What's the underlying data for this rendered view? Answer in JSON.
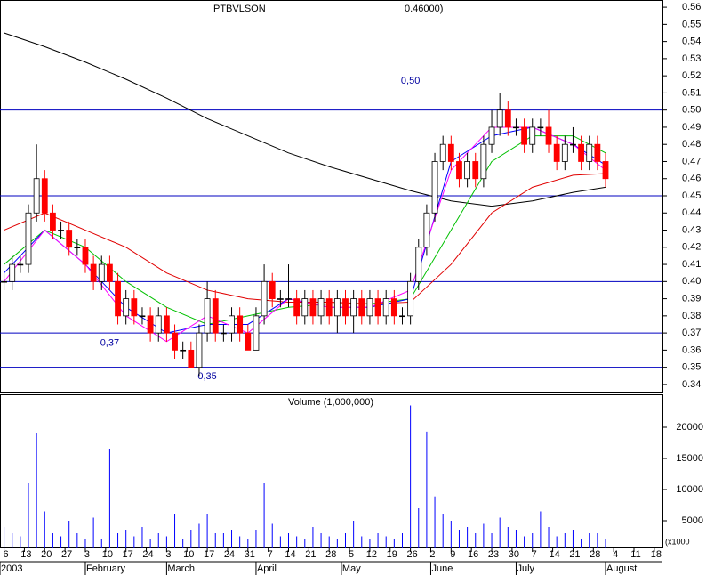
{
  "chart_data": {
    "type": "candlestick",
    "title": "PTBVLSON",
    "last_label": "0.46000)",
    "xlim": [
      -1,
      162
    ],
    "ylim": [
      0.3358,
      0.5642
    ],
    "yticks": [
      0.34,
      0.35,
      0.36,
      0.37,
      0.38,
      0.39,
      {
        "value": 0.4,
        "label": "0.40"
      },
      0.41,
      0.42,
      0.43,
      0.44,
      0.45,
      0.46,
      0.47,
      0.48,
      0.49,
      {
        "value": 0.5,
        "label": "0.50"
      },
      0.51,
      0.52,
      0.53,
      0.54,
      0.55,
      0.56
    ],
    "xticks": [
      {
        "value": 0,
        "label": "6"
      },
      {
        "value": 5,
        "label": "13"
      },
      {
        "value": 10,
        "label": "20"
      },
      {
        "value": 15,
        "label": "27"
      },
      {
        "value": 20,
        "label": "3"
      },
      {
        "value": 25,
        "label": "10"
      },
      {
        "value": 30,
        "label": "17"
      },
      {
        "value": 35,
        "label": "24"
      },
      {
        "value": 40,
        "label": "3"
      },
      {
        "value": 45,
        "label": "10"
      },
      {
        "value": 50,
        "label": "17"
      },
      {
        "value": 55,
        "label": "24"
      },
      {
        "value": 60,
        "label": "31"
      },
      {
        "value": 65,
        "label": "7"
      },
      {
        "value": 70,
        "label": "14"
      },
      {
        "value": 75,
        "label": "21"
      },
      {
        "value": 80,
        "label": "28"
      },
      {
        "value": 85,
        "label": "5"
      },
      {
        "value": 90,
        "label": "12"
      },
      {
        "value": 95,
        "label": "19"
      },
      {
        "value": 100,
        "label": "26"
      },
      {
        "value": 105,
        "label": "2"
      },
      {
        "value": 110,
        "label": "9"
      },
      {
        "value": 115,
        "label": "16"
      },
      {
        "value": 120,
        "label": "23"
      },
      {
        "value": 125,
        "label": "30"
      },
      {
        "value": 130,
        "label": "7"
      },
      {
        "value": 135,
        "label": "14"
      },
      {
        "value": 140,
        "label": "21"
      },
      {
        "value": 145,
        "label": "28"
      },
      {
        "value": 150,
        "label": "4"
      },
      {
        "value": 155,
        "label": "11"
      },
      {
        "value": 160,
        "label": "18"
      }
    ],
    "month_ticks": [
      {
        "value": -1,
        "label": "2003"
      },
      {
        "value": 20,
        "label": "February"
      },
      {
        "value": 40,
        "label": "March"
      },
      {
        "value": 62,
        "label": "April"
      },
      {
        "value": 83,
        "label": "May"
      },
      {
        "value": 105,
        "label": "June"
      },
      {
        "value": 126,
        "label": "July"
      },
      {
        "value": 148,
        "label": "August"
      }
    ],
    "x": [
      0,
      2,
      4,
      6,
      8,
      10,
      12,
      14,
      16,
      18,
      20,
      22,
      24,
      26,
      28,
      30,
      32,
      34,
      36,
      38,
      40,
      42,
      44,
      46,
      48,
      50,
      52,
      54,
      56,
      58,
      60,
      62,
      64,
      66,
      68,
      70,
      72,
      74,
      76,
      78,
      80,
      82,
      84,
      86,
      88,
      90,
      92,
      94,
      96,
      98,
      100,
      102,
      104,
      106,
      108,
      110,
      112,
      114,
      116,
      118,
      120,
      122,
      124,
      126,
      128,
      130,
      132,
      134,
      136,
      138,
      140,
      142,
      144,
      146,
      148
    ],
    "open": [
      0.4,
      0.4,
      0.41,
      0.41,
      0.44,
      0.46,
      0.44,
      0.43,
      0.43,
      0.42,
      0.42,
      0.41,
      0.4,
      0.41,
      0.4,
      0.38,
      0.39,
      0.38,
      0.38,
      0.37,
      0.38,
      0.37,
      0.36,
      0.36,
      0.35,
      0.37,
      0.39,
      0.37,
      0.37,
      0.38,
      0.37,
      0.36,
      0.38,
      0.4,
      0.39,
      0.39,
      0.39,
      0.38,
      0.39,
      0.38,
      0.39,
      0.38,
      0.39,
      0.38,
      0.39,
      0.38,
      0.39,
      0.38,
      0.39,
      0.38,
      0.38,
      0.4,
      0.42,
      0.44,
      0.47,
      0.48,
      0.47,
      0.46,
      0.47,
      0.46,
      0.48,
      0.49,
      0.5,
      0.49,
      0.49,
      0.48,
      0.49,
      0.49,
      0.48,
      0.47,
      0.48,
      0.48,
      0.47,
      0.48,
      0.47
    ],
    "close": [
      0.4,
      0.41,
      0.41,
      0.44,
      0.46,
      0.44,
      0.43,
      0.43,
      0.42,
      0.42,
      0.41,
      0.4,
      0.41,
      0.4,
      0.38,
      0.39,
      0.38,
      0.38,
      0.37,
      0.38,
      0.37,
      0.36,
      0.36,
      0.35,
      0.37,
      0.39,
      0.37,
      0.37,
      0.38,
      0.37,
      0.36,
      0.38,
      0.4,
      0.39,
      0.39,
      0.39,
      0.38,
      0.39,
      0.38,
      0.39,
      0.38,
      0.39,
      0.38,
      0.39,
      0.38,
      0.39,
      0.38,
      0.39,
      0.38,
      0.38,
      0.4,
      0.42,
      0.44,
      0.47,
      0.48,
      0.47,
      0.46,
      0.47,
      0.46,
      0.48,
      0.49,
      0.5,
      0.49,
      0.49,
      0.48,
      0.49,
      0.49,
      0.48,
      0.47,
      0.48,
      0.48,
      0.47,
      0.48,
      0.47,
      0.46
    ],
    "high": [
      0.405,
      0.415,
      0.415,
      0.445,
      0.48,
      0.465,
      0.445,
      0.435,
      0.435,
      0.425,
      0.425,
      0.415,
      0.415,
      0.415,
      0.405,
      0.395,
      0.395,
      0.385,
      0.385,
      0.385,
      0.385,
      0.375,
      0.365,
      0.365,
      0.375,
      0.4,
      0.395,
      0.375,
      0.385,
      0.385,
      0.375,
      0.385,
      0.41,
      0.405,
      0.395,
      0.41,
      0.395,
      0.395,
      0.395,
      0.395,
      0.395,
      0.395,
      0.395,
      0.395,
      0.395,
      0.395,
      0.395,
      0.395,
      0.395,
      0.385,
      0.405,
      0.425,
      0.445,
      0.475,
      0.485,
      0.485,
      0.475,
      0.475,
      0.475,
      0.485,
      0.5,
      0.51,
      0.505,
      0.495,
      0.495,
      0.495,
      0.495,
      0.5,
      0.485,
      0.485,
      0.49,
      0.485,
      0.485,
      0.485,
      0.475
    ],
    "low": [
      0.395,
      0.395,
      0.405,
      0.405,
      0.435,
      0.435,
      0.425,
      0.425,
      0.415,
      0.415,
      0.405,
      0.395,
      0.395,
      0.395,
      0.375,
      0.375,
      0.375,
      0.375,
      0.365,
      0.365,
      0.365,
      0.355,
      0.355,
      0.35,
      0.345,
      0.365,
      0.365,
      0.365,
      0.365,
      0.365,
      0.36,
      0.36,
      0.375,
      0.385,
      0.385,
      0.385,
      0.375,
      0.375,
      0.375,
      0.375,
      0.375,
      0.37,
      0.375,
      0.37,
      0.375,
      0.375,
      0.375,
      0.375,
      0.375,
      0.375,
      0.375,
      0.395,
      0.415,
      0.435,
      0.465,
      0.465,
      0.455,
      0.455,
      0.455,
      0.455,
      0.475,
      0.485,
      0.485,
      0.485,
      0.475,
      0.475,
      0.485,
      0.475,
      0.465,
      0.465,
      0.475,
      0.465,
      0.465,
      0.465,
      0.455
    ],
    "up_color": "#ffffff",
    "down_color": "#ff0000",
    "ma_x": [
      0,
      10,
      20,
      30,
      40,
      50,
      60,
      70,
      80,
      90,
      100,
      110,
      120,
      130,
      140,
      148
    ],
    "ma_series": [
      {
        "color": "#000000",
        "values": [
          0.545,
          0.537,
          0.528,
          0.518,
          0.507,
          0.495,
          0.485,
          0.475,
          0.467,
          0.46,
          0.453,
          0.447,
          0.444,
          0.447,
          0.452,
          0.455
        ]
      },
      {
        "color": "#e00000",
        "values": [
          0.43,
          0.44,
          0.43,
          0.42,
          0.405,
          0.395,
          0.39,
          0.388,
          0.388,
          0.387,
          0.388,
          0.41,
          0.44,
          0.455,
          0.462,
          0.463
        ]
      },
      {
        "color": "#00c000",
        "values": [
          0.41,
          0.43,
          0.42,
          0.4,
          0.385,
          0.375,
          0.38,
          0.385,
          0.387,
          0.387,
          0.39,
          0.43,
          0.47,
          0.485,
          0.485,
          0.475
        ]
      },
      {
        "color": "#0000ff",
        "values": [
          0.405,
          0.43,
          0.41,
          0.385,
          0.37,
          0.375,
          0.375,
          0.39,
          0.385,
          0.385,
          0.39,
          0.47,
          0.485,
          0.49,
          0.48,
          0.468
        ]
      },
      {
        "color": "#ff00ff",
        "values": [
          0.4,
          0.43,
          0.41,
          0.38,
          0.365,
          0.38,
          0.37,
          0.39,
          0.385,
          0.385,
          0.395,
          0.465,
          0.49,
          0.49,
          0.48,
          0.465
        ]
      }
    ],
    "hline_color": "#0000c0",
    "hlines": [
      0.5,
      0.45,
      0.4,
      0.37,
      0.35
    ],
    "annotations": [
      {
        "text": "0,50",
        "x": 100,
        "y": 0.517
      },
      {
        "text": "0,37",
        "x": 26,
        "y": 0.364
      },
      {
        "text": "0,35",
        "x": 50,
        "y": 0.3445
      }
    ],
    "volume": {
      "title": "Volume (1,000,000)",
      "unit_label": "(x1000",
      "color": "#0000ff",
      "ylim": [
        571,
        25286
      ],
      "yticks": [
        5000,
        10000,
        15000,
        20000
      ],
      "values": [
        4000,
        3000,
        2500,
        11000,
        19000,
        6500,
        3000,
        2500,
        5000,
        3000,
        2000,
        5500,
        2000,
        16500,
        3000,
        3500,
        2500,
        4000,
        2000,
        3000,
        2500,
        6000,
        2000,
        3500,
        4500,
        6000,
        3000,
        3000,
        3500,
        2500,
        2000,
        3500,
        11000,
        4500,
        2500,
        3000,
        2500,
        2000,
        4000,
        3000,
        2500,
        2000,
        3000,
        5000,
        2500,
        2000,
        3000,
        2500,
        2000,
        3000,
        23500,
        7000,
        19300,
        8900,
        6000,
        5000,
        3500,
        4000,
        3000,
        4500,
        3000,
        5500,
        4000,
        3500,
        2500,
        3000,
        6500,
        4000,
        2500,
        3000,
        3500,
        2000,
        3000,
        3000,
        2000
      ]
    }
  }
}
